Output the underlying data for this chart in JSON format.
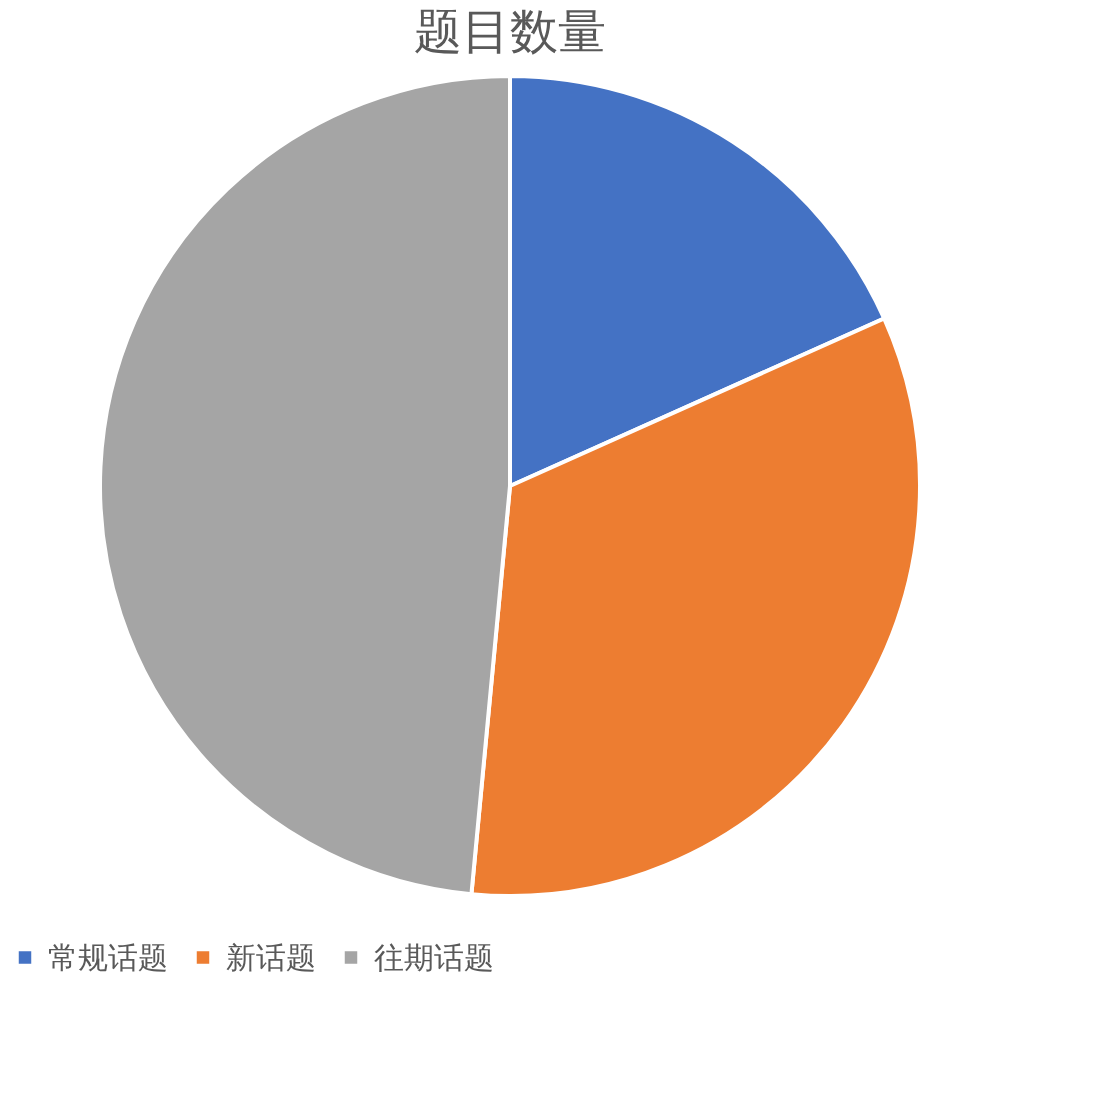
{
  "chart_data": {
    "type": "pie",
    "title": "题目数量",
    "categories": [
      "常规话题",
      "新话题",
      "往期话题"
    ],
    "values": [
      18.3,
      33.2,
      48.5
    ],
    "colors": [
      "#4472c4",
      "#ed7d31",
      "#a5a5a5"
    ],
    "legend": "bottom"
  }
}
